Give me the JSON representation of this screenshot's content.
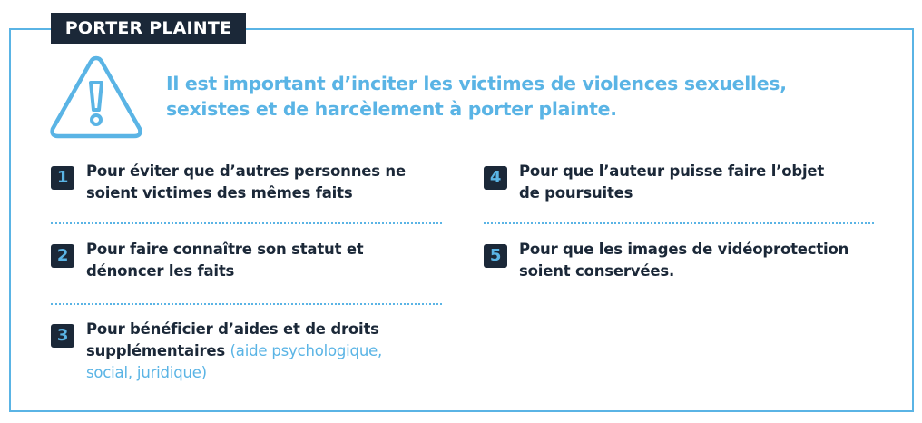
{
  "tag": "PORTER PLAINTE",
  "icon": "warning-triangle-icon",
  "accent_color": "#5ab4e5",
  "dark_color": "#1b2838",
  "heading": "Il est important d’inciter les victimes de violences sexuelles, sexistes et de harcèlement à porter plainte.",
  "items": [
    {
      "number": "1",
      "text": "Pour éviter que d’autres personnes ne soient victimes des mêmes faits"
    },
    {
      "number": "2",
      "text": "Pour faire connaître son statut et dénoncer les faits"
    },
    {
      "number": "3",
      "text": "Pour bénéficier d’aides et de droits supplémentaires",
      "note": "(aide psychologique, social, juridique)"
    },
    {
      "number": "4",
      "text": "Pour que l’auteur puisse faire l’objet de poursuites"
    },
    {
      "number": "5",
      "text": "Pour que les images de vidéoprotection soient conservées."
    }
  ]
}
